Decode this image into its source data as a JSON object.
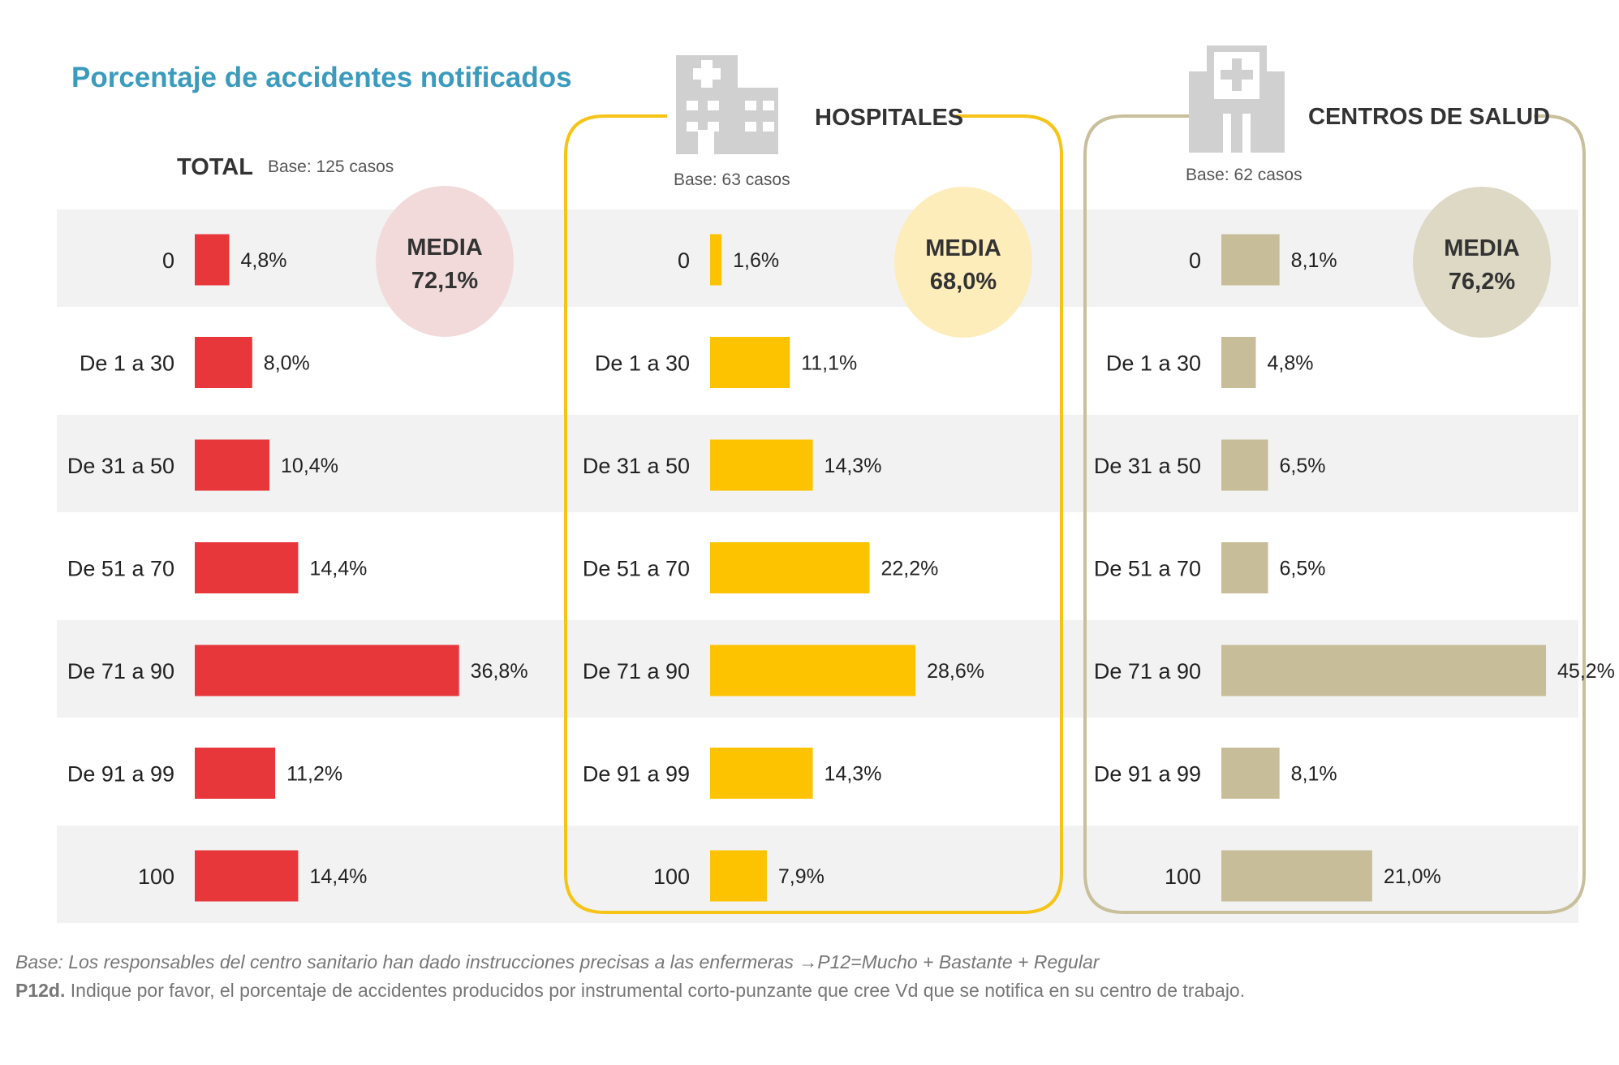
{
  "title": "Porcentaje de accidentes notificados",
  "footer": {
    "base_note": "Base: Los responsables del centro sanitario han dado instrucciones precisas a las enfermeras →P12=Mucho + Bastante + Regular",
    "question_id": "P12d.",
    "question_text": " Indique por favor, el porcentaje de accidentes producidos por instrumental corto-punzante que cree Vd que se notifica en su centro de trabajo."
  },
  "chart_data": [
    {
      "type": "bar",
      "orientation": "horizontal",
      "group_label": "TOTAL",
      "base": "Base: 125 casos",
      "media_label": "MEDIA",
      "media_value": "72,1%",
      "color": "#e8373a",
      "media_color": "#f2dadb",
      "categories": [
        "0",
        "De 1 a 30",
        "De 31 a 50",
        "De 51 a 70",
        "De 71 a 90",
        "De 91 a 99",
        "100"
      ],
      "values": [
        4.8,
        8.0,
        10.4,
        14.4,
        36.8,
        11.2,
        14.4
      ],
      "value_labels": [
        "4,8%",
        "8,0%",
        "10,4%",
        "14,4%",
        "36,8%",
        "11,2%",
        "14,4%"
      ]
    },
    {
      "type": "bar",
      "orientation": "horizontal",
      "group_label": "HOSPITALES",
      "base": "Base: 63 casos",
      "media_label": "MEDIA",
      "media_value": "68,0%",
      "icon": "hospital-building-icon",
      "color": "#fdc300",
      "media_color": "#fdedbb",
      "frame_color": "#f6c416",
      "categories": [
        "0",
        "De 1 a 30",
        "De 31 a 50",
        "De 51 a 70",
        "De 71 a 90",
        "De 91 a 99",
        "100"
      ],
      "values": [
        1.6,
        11.1,
        14.3,
        22.2,
        28.6,
        14.3,
        7.9
      ],
      "value_labels": [
        "1,6%",
        "11,1%",
        "14,3%",
        "22,2%",
        "28,6%",
        "14,3%",
        "7,9%"
      ]
    },
    {
      "type": "bar",
      "orientation": "horizontal",
      "group_label": "CENTROS DE SALUD",
      "base": "Base: 62 casos",
      "media_label": "MEDIA",
      "media_value": "76,2%",
      "icon": "health-center-icon",
      "color": "#c7bd98",
      "media_color": "#ddd9c4",
      "frame_color": "#c8bf9b",
      "categories": [
        "0",
        "De 1 a 30",
        "De 31 a 50",
        "De 51 a 70",
        "De 71 a 90",
        "De 91 a 99",
        "100"
      ],
      "values": [
        8.1,
        4.8,
        6.5,
        6.5,
        45.2,
        8.1,
        21.0
      ],
      "value_labels": [
        "8,1%",
        "4,8%",
        "6,5%",
        "6,5%",
        "45,2%",
        "8,1%",
        "21,0%"
      ]
    }
  ]
}
